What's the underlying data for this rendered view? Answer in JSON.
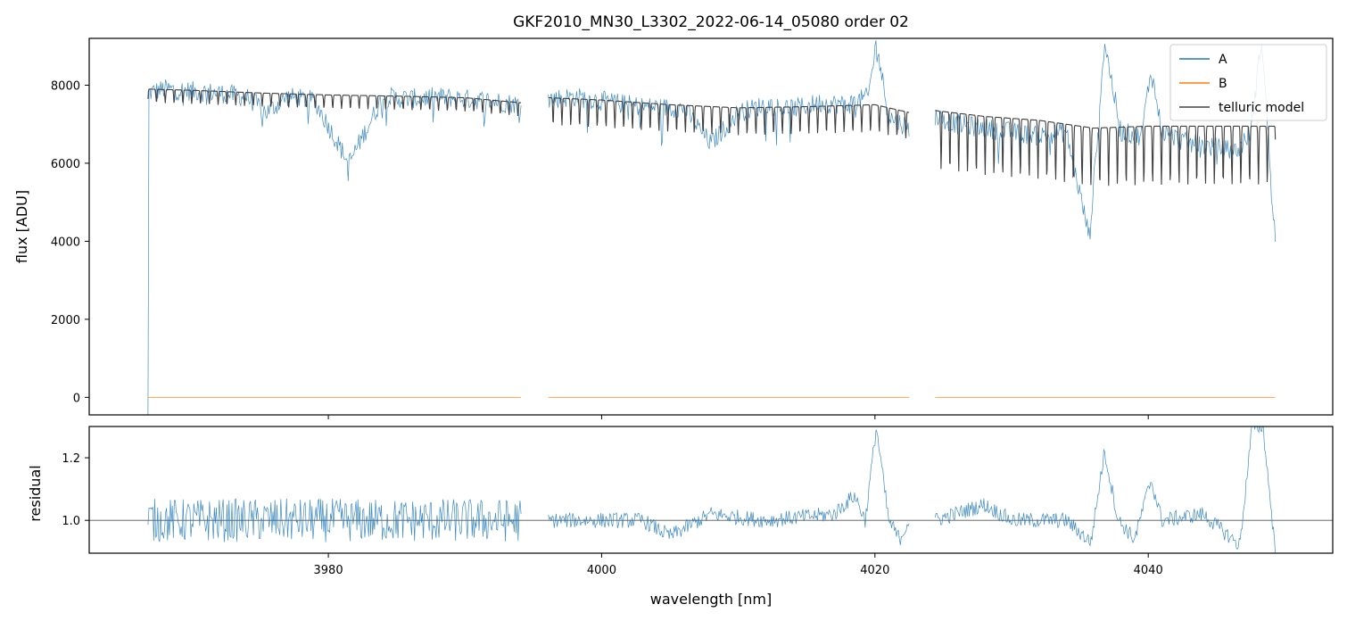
{
  "figure": {
    "title": "GKF2010_MN30_L3302_2022-06-14_05080  order 02"
  },
  "colors": {
    "A": "#1f77b4",
    "B": "#ff7f0e",
    "telluric": "#404040",
    "refline": "#555555"
  },
  "chart_data": [
    {
      "type": "line",
      "panel": "flux",
      "title": "GKF2010_MN30_L3302_2022-06-14_05080  order 02",
      "xlabel": "",
      "ylabel": "flux [ADU]",
      "xlim": [
        3962.5,
        4053.5
      ],
      "ylim": [
        -450,
        9200
      ],
      "x_ticks": [
        3980,
        4000,
        4020,
        4040
      ],
      "y_ticks": [
        0,
        2000,
        4000,
        6000,
        8000
      ],
      "legend": [
        "A",
        "B",
        "telluric model"
      ],
      "legend_position": "top-right",
      "segments": [
        [
          3966.8,
          3994.1
        ],
        [
          3996.1,
          4022.5
        ],
        [
          4024.4,
          4049.3
        ]
      ],
      "series": [
        {
          "name": "A",
          "x": [
            3966.8,
            3968,
            3970,
            3972,
            3974,
            3975.5,
            3977,
            3979,
            3981.5,
            3984,
            3986,
            3988,
            3990,
            3992,
            3994.1,
            3996.1,
            3998,
            4000,
            4003,
            4006,
            4008,
            4010,
            4012,
            4014,
            4016,
            4018,
            4019.5,
            4020.1,
            4021,
            4022.5,
            4024.4,
            4026,
            4028,
            4030,
            4032,
            4034,
            4035.7,
            4036.8,
            4038,
            4039.5,
            4040.2,
            4041,
            4043,
            4045,
            4046.5,
            4047.5,
            4048.3,
            4049.3
          ],
          "values": [
            7800,
            7900,
            7850,
            7800,
            7700,
            7300,
            7700,
            7600,
            6000,
            7700,
            7650,
            7700,
            7650,
            7600,
            7500,
            7650,
            7700,
            7600,
            7450,
            7400,
            6500,
            7300,
            7500,
            7400,
            7550,
            7500,
            7700,
            9100,
            7200,
            6900,
            7200,
            7000,
            6900,
            6800,
            6700,
            6800,
            4100,
            9100,
            6800,
            6700,
            8400,
            6800,
            6500,
            6400,
            6300,
            6800,
            9200,
            4000
          ]
        },
        {
          "name": "B",
          "x": [
            3966.8,
            3994.1,
            3996.1,
            4022.5,
            4024.4,
            4049.3
          ],
          "values": [
            0,
            0,
            0,
            0,
            0,
            0
          ]
        },
        {
          "name": "telluric model",
          "x": [
            3966.8,
            3970,
            3975,
            3980,
            3985,
            3990,
            3994.1,
            3996.1,
            4000,
            4005,
            4010,
            4015,
            4020,
            4022.5,
            4024.4,
            4028,
            4032,
            4036,
            4040,
            4044,
            4049.3
          ],
          "values": [
            7900,
            7870,
            7800,
            7750,
            7720,
            7680,
            7550,
            7680,
            7620,
            7500,
            7420,
            7450,
            7500,
            7300,
            7350,
            7200,
            7100,
            6900,
            6950,
            6950,
            6950
          ]
        }
      ]
    },
    {
      "type": "line",
      "panel": "residual",
      "xlabel": "wavelength [nm]",
      "ylabel": "residual",
      "xlim": [
        3962.5,
        4053.5
      ],
      "ylim": [
        0.895,
        1.3
      ],
      "x_ticks": [
        3980,
        4000,
        4020,
        4040
      ],
      "y_ticks": [
        1.0,
        1.2
      ],
      "reference_line": 1.0,
      "series": [
        {
          "name": "",
          "x": [
            3966.8,
            3994.1,
            3996.1,
            4003,
            4005,
            4008,
            4012,
            4017,
            4018.5,
            4019.3,
            4020.1,
            4021,
            4021.8,
            4022.5,
            4024.4,
            4028,
            4030,
            4034,
            4035.8,
            4036.8,
            4037.8,
            4039,
            4040.2,
            4041,
            4044,
            4046.7,
            4047.6,
            4048.4,
            4049.3
          ],
          "values": [
            1.0,
            1.0,
            1.0,
            1.0,
            0.95,
            1.02,
            1.0,
            1.02,
            1.08,
            1.0,
            1.3,
            1.0,
            0.94,
            1.0,
            1.0,
            1.05,
            1.0,
            1.0,
            0.93,
            1.22,
            1.0,
            0.94,
            1.13,
            1.0,
            1.02,
            0.92,
            1.3,
            1.3,
            0.9
          ]
        }
      ]
    }
  ]
}
